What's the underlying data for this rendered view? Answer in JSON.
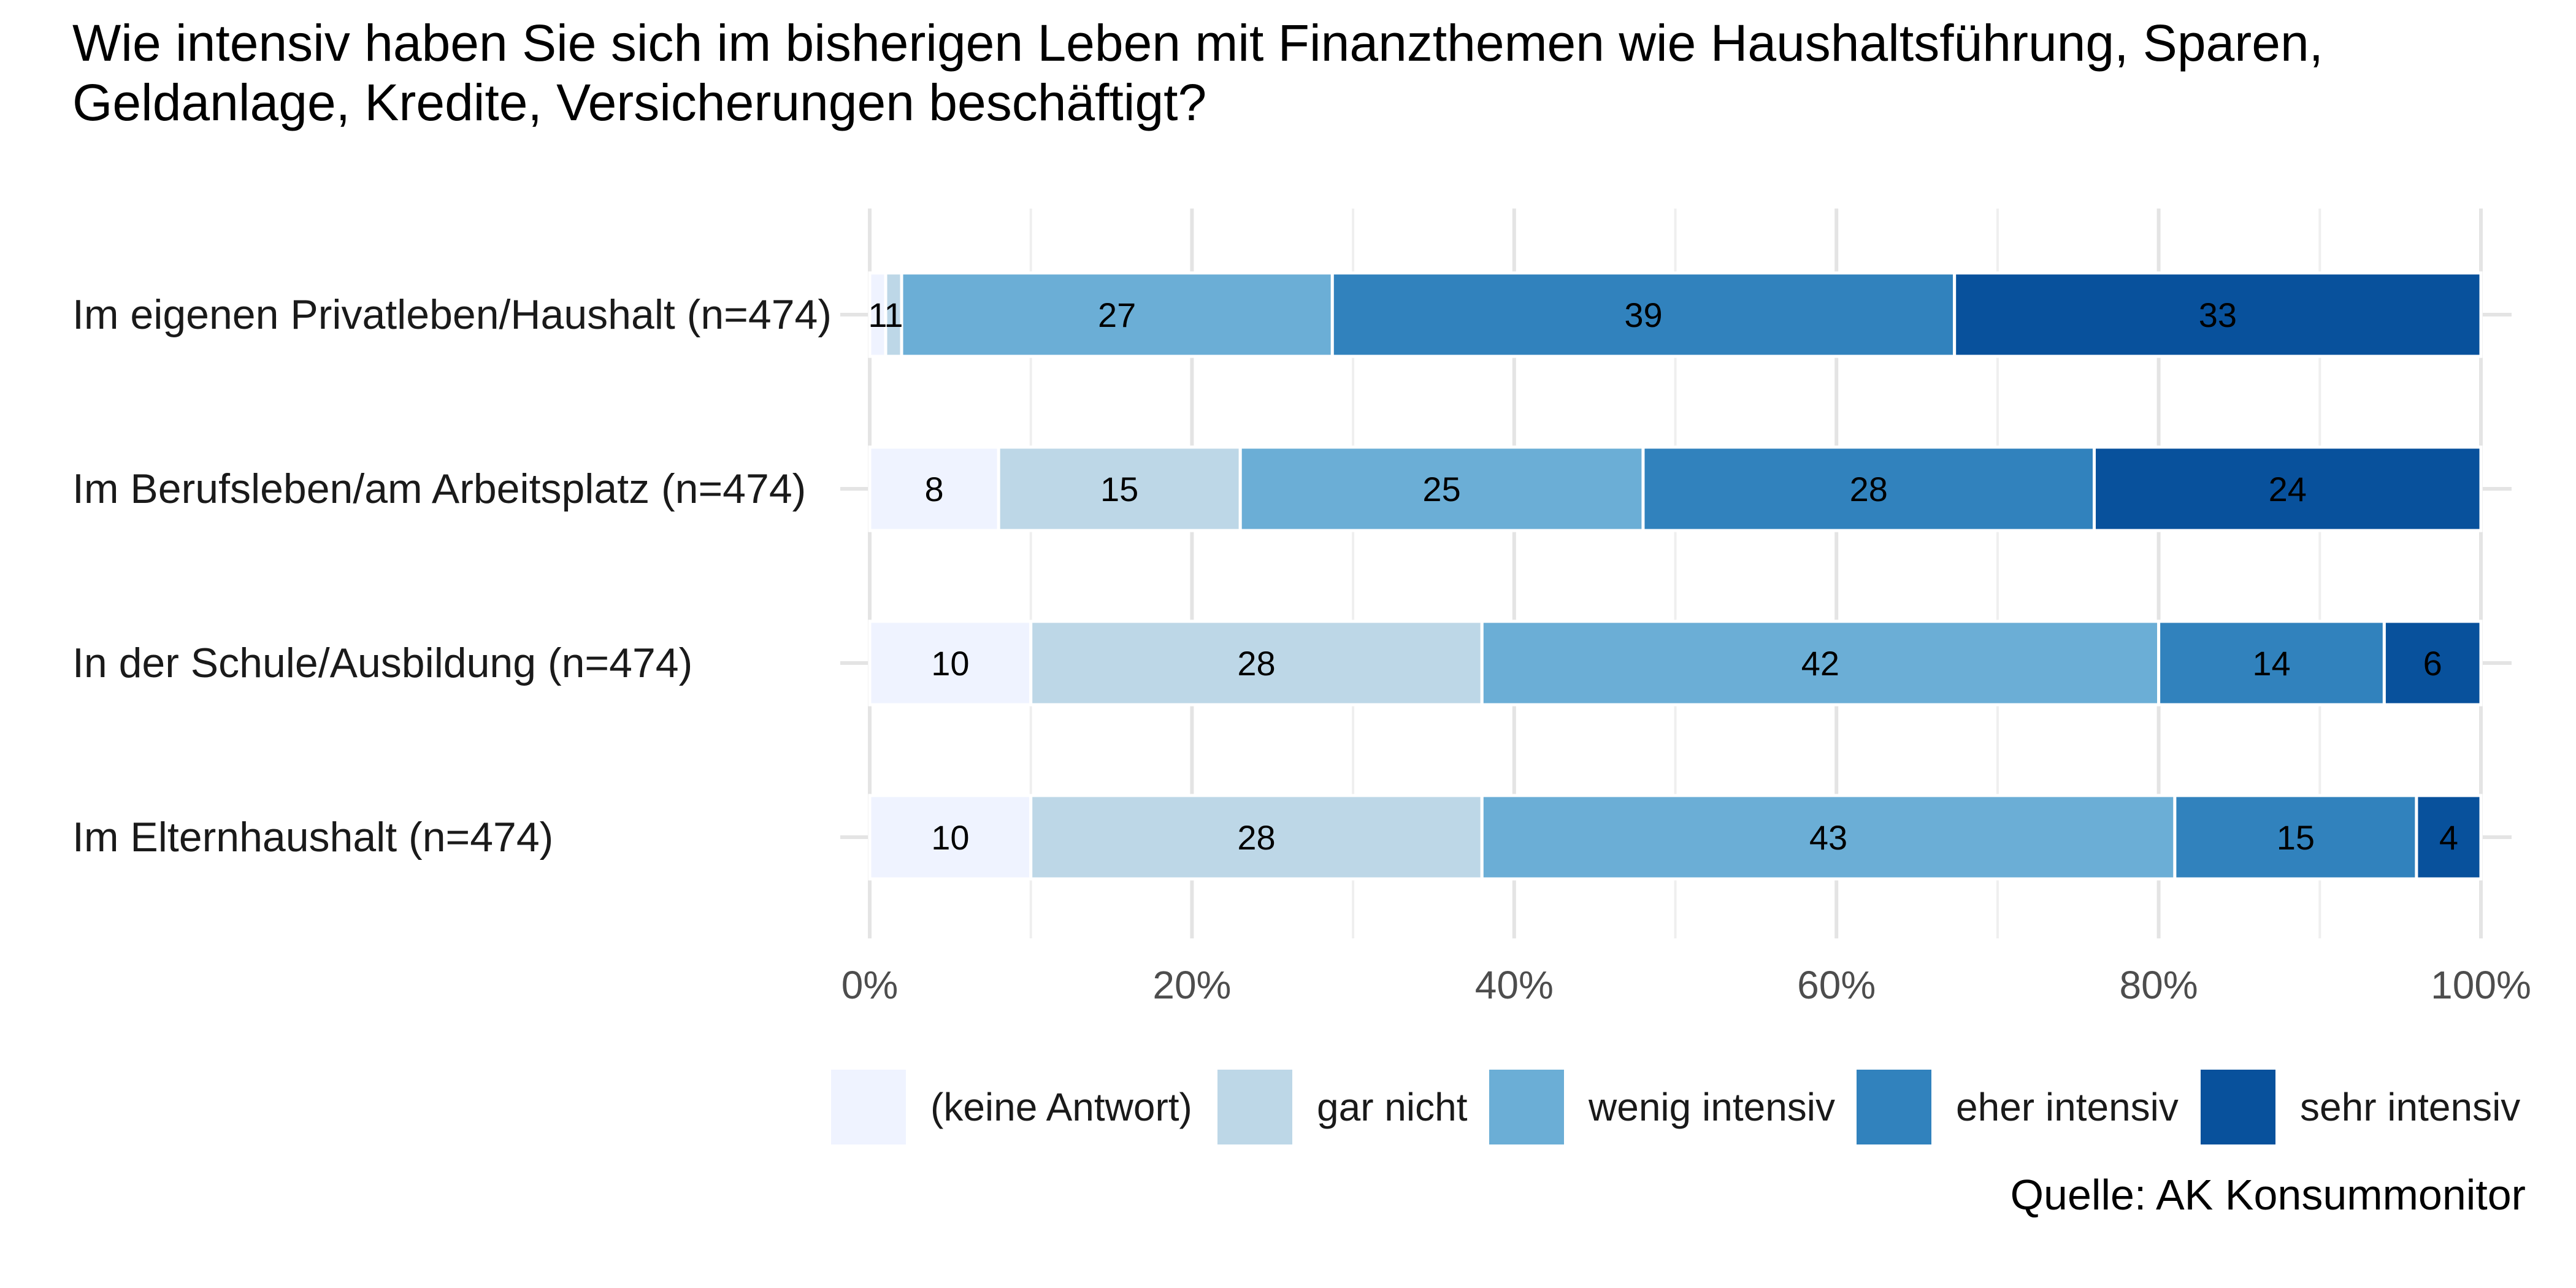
{
  "chart_data": {
    "type": "bar",
    "orientation": "horizontal",
    "stacked": true,
    "title": "Wie intensiv haben Sie sich im bisherigen Leben mit Finanzthemen wie Haushaltsführung, Sparen, Geldanlage, Kredite, Versicherungen beschäftigt?",
    "categories": [
      "Im eigenen Privatleben/Haushalt (n=474)",
      "Im Berufsleben/am Arbeitsplatz (n=474)",
      "In der Schule/Ausbildung (n=474)",
      "Im Elternhaushalt (n=474)"
    ],
    "series": [
      {
        "name": "(keine Antwort)",
        "color": "#eff3ff",
        "values": [
          1,
          8,
          10,
          10
        ]
      },
      {
        "name": "gar nicht",
        "color": "#bdd7e7",
        "values": [
          1,
          15,
          28,
          28
        ]
      },
      {
        "name": "wenig intensiv",
        "color": "#6baed6",
        "values": [
          27,
          25,
          42,
          43
        ]
      },
      {
        "name": "eher intensiv",
        "color": "#3182bd",
        "values": [
          39,
          28,
          14,
          15
        ]
      },
      {
        "name": "sehr intensiv",
        "color": "#08519c",
        "values": [
          33,
          24,
          6,
          4
        ]
      }
    ],
    "xlim": [
      0,
      100
    ],
    "x_ticks": [
      "0%",
      "20%",
      "40%",
      "60%",
      "80%",
      "100%"
    ],
    "xlabel": "",
    "ylabel": "",
    "grid": true,
    "legend_position": "bottom",
    "caption": "Quelle: AK Konsummonitor"
  }
}
